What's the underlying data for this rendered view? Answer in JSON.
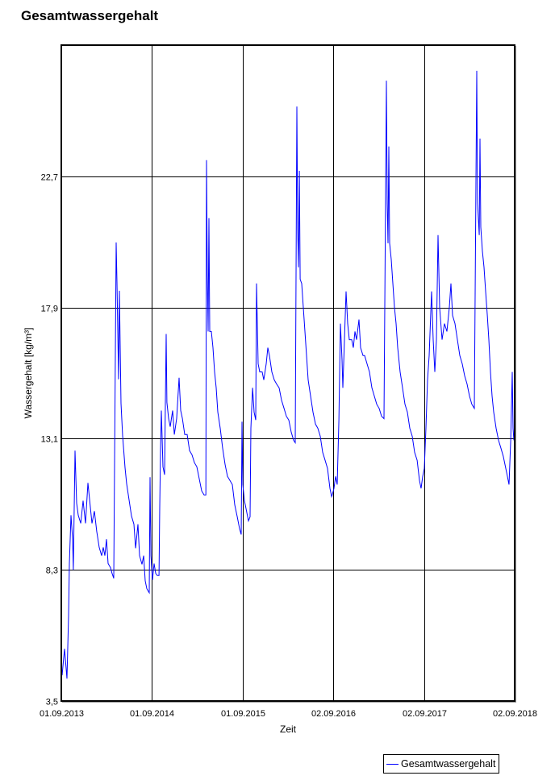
{
  "title": "Gesamtwassergehalt",
  "chart_data": {
    "type": "line",
    "title": "Gesamtwassergehalt",
    "xlabel": "Zeit",
    "ylabel": "Wassergehalt [kg/m³]",
    "ylim": [
      3.5,
      27.5
    ],
    "yticks": [
      3.5,
      8.3,
      13.1,
      17.9,
      22.7
    ],
    "ytick_labels": [
      "3,5",
      "8,3",
      "13,1",
      "17,9",
      "22,7"
    ],
    "xticks": [
      "01.09.2013",
      "01.09.2014",
      "01.09.2015",
      "02.09.2016",
      "02.09.2017",
      "02.09.2018"
    ],
    "x_unit": "years since 01.09.2013",
    "xlim": [
      0,
      5
    ],
    "grid": true,
    "legend_position": "bottom-right",
    "series": [
      {
        "name": "Gesamtwassergehalt",
        "color": "#0000ff",
        "points": [
          [
            0.009,
            4.44
          ],
          [
            0.036,
            5.41
          ],
          [
            0.062,
            4.32
          ],
          [
            0.08,
            6.62
          ],
          [
            0.089,
            8.53
          ],
          [
            0.107,
            10.3
          ],
          [
            0.125,
            9.42
          ],
          [
            0.133,
            8.3
          ],
          [
            0.151,
            12.66
          ],
          [
            0.169,
            10.74
          ],
          [
            0.187,
            10.3
          ],
          [
            0.214,
            10.0
          ],
          [
            0.24,
            10.83
          ],
          [
            0.267,
            10.0
          ],
          [
            0.294,
            11.48
          ],
          [
            0.311,
            10.89
          ],
          [
            0.338,
            10.0
          ],
          [
            0.365,
            10.45
          ],
          [
            0.391,
            9.71
          ],
          [
            0.418,
            9.12
          ],
          [
            0.445,
            8.82
          ],
          [
            0.463,
            9.12
          ],
          [
            0.48,
            8.82
          ],
          [
            0.498,
            9.42
          ],
          [
            0.516,
            8.53
          ],
          [
            0.543,
            8.38
          ],
          [
            0.56,
            8.17
          ],
          [
            0.578,
            7.99
          ],
          [
            0.605,
            20.28
          ],
          [
            0.614,
            18.81
          ],
          [
            0.632,
            15.27
          ],
          [
            0.641,
            18.51
          ],
          [
            0.658,
            14.39
          ],
          [
            0.676,
            13.21
          ],
          [
            0.703,
            12.04
          ],
          [
            0.721,
            11.45
          ],
          [
            0.747,
            10.86
          ],
          [
            0.774,
            10.27
          ],
          [
            0.801,
            9.97
          ],
          [
            0.819,
            9.09
          ],
          [
            0.845,
            9.97
          ],
          [
            0.863,
            8.82
          ],
          [
            0.89,
            8.5
          ],
          [
            0.908,
            8.82
          ],
          [
            0.925,
            7.9
          ],
          [
            0.943,
            7.61
          ],
          [
            0.97,
            7.46
          ],
          [
            0.979,
            11.69
          ],
          [
            0.988,
            8.82
          ],
          [
            1.005,
            7.93
          ],
          [
            1.023,
            8.53
          ],
          [
            1.041,
            8.17
          ],
          [
            1.059,
            8.09
          ],
          [
            1.077,
            8.09
          ],
          [
            1.085,
            10.59
          ],
          [
            1.094,
            12.66
          ],
          [
            1.103,
            14.13
          ],
          [
            1.121,
            12.07
          ],
          [
            1.139,
            11.78
          ],
          [
            1.157,
            16.93
          ],
          [
            1.165,
            14.43
          ],
          [
            1.183,
            13.84
          ],
          [
            1.201,
            13.54
          ],
          [
            1.228,
            14.13
          ],
          [
            1.246,
            13.25
          ],
          [
            1.272,
            13.84
          ],
          [
            1.299,
            15.33
          ],
          [
            1.317,
            14.13
          ],
          [
            1.335,
            13.84
          ],
          [
            1.361,
            13.25
          ],
          [
            1.388,
            13.25
          ],
          [
            1.415,
            12.66
          ],
          [
            1.441,
            12.51
          ],
          [
            1.468,
            12.22
          ],
          [
            1.495,
            12.07
          ],
          [
            1.521,
            11.63
          ],
          [
            1.548,
            11.19
          ],
          [
            1.575,
            11.04
          ],
          [
            1.594,
            11.04
          ],
          [
            1.601,
            23.29
          ],
          [
            1.61,
            19.08
          ],
          [
            1.619,
            17.02
          ],
          [
            1.628,
            21.17
          ],
          [
            1.637,
            17.02
          ],
          [
            1.655,
            17.02
          ],
          [
            1.673,
            16.43
          ],
          [
            1.69,
            15.54
          ],
          [
            1.708,
            14.96
          ],
          [
            1.726,
            14.07
          ],
          [
            1.753,
            13.48
          ],
          [
            1.779,
            12.75
          ],
          [
            1.806,
            12.16
          ],
          [
            1.833,
            11.72
          ],
          [
            1.859,
            11.57
          ],
          [
            1.886,
            11.42
          ],
          [
            1.913,
            10.68
          ],
          [
            1.94,
            10.24
          ],
          [
            1.966,
            9.8
          ],
          [
            1.984,
            9.59
          ],
          [
            1.993,
            13.72
          ],
          [
            2.002,
            11.42
          ],
          [
            2.02,
            10.83
          ],
          [
            2.037,
            10.54
          ],
          [
            2.055,
            10.24
          ],
          [
            2.064,
            10.09
          ],
          [
            2.082,
            10.24
          ],
          [
            2.091,
            13.48
          ],
          [
            2.109,
            14.96
          ],
          [
            2.126,
            14.07
          ],
          [
            2.144,
            13.78
          ],
          [
            2.153,
            18.78
          ],
          [
            2.171,
            15.84
          ],
          [
            2.189,
            15.54
          ],
          [
            2.215,
            15.54
          ],
          [
            2.233,
            15.25
          ],
          [
            2.26,
            15.84
          ],
          [
            2.278,
            16.43
          ],
          [
            2.295,
            16.14
          ],
          [
            2.322,
            15.54
          ],
          [
            2.349,
            15.25
          ],
          [
            2.375,
            15.1
          ],
          [
            2.402,
            14.96
          ],
          [
            2.429,
            14.51
          ],
          [
            2.456,
            14.21
          ],
          [
            2.482,
            13.92
          ],
          [
            2.509,
            13.78
          ],
          [
            2.536,
            13.34
          ],
          [
            2.562,
            13.04
          ],
          [
            2.58,
            12.95
          ],
          [
            2.598,
            25.25
          ],
          [
            2.607,
            20.84
          ],
          [
            2.616,
            19.37
          ],
          [
            2.625,
            22.9
          ],
          [
            2.634,
            18.93
          ],
          [
            2.651,
            18.78
          ],
          [
            2.669,
            17.9
          ],
          [
            2.687,
            17.02
          ],
          [
            2.705,
            16.14
          ],
          [
            2.722,
            15.25
          ],
          [
            2.749,
            14.66
          ],
          [
            2.776,
            14.07
          ],
          [
            2.803,
            13.63
          ],
          [
            2.829,
            13.48
          ],
          [
            2.856,
            13.19
          ],
          [
            2.883,
            12.6
          ],
          [
            2.909,
            12.31
          ],
          [
            2.936,
            12.01
          ],
          [
            2.963,
            11.28
          ],
          [
            2.981,
            10.98
          ],
          [
            2.99,
            11.07
          ],
          [
            3.007,
            11.28
          ],
          [
            3.025,
            11.72
          ],
          [
            3.043,
            11.42
          ],
          [
            3.061,
            13.78
          ],
          [
            3.078,
            17.31
          ],
          [
            3.096,
            15.98
          ],
          [
            3.105,
            14.96
          ],
          [
            3.123,
            16.72
          ],
          [
            3.141,
            18.49
          ],
          [
            3.158,
            17.31
          ],
          [
            3.176,
            16.72
          ],
          [
            3.203,
            16.72
          ],
          [
            3.221,
            16.43
          ],
          [
            3.238,
            17.02
          ],
          [
            3.256,
            16.72
          ],
          [
            3.283,
            17.46
          ],
          [
            3.301,
            16.43
          ],
          [
            3.327,
            16.14
          ],
          [
            3.345,
            16.14
          ],
          [
            3.372,
            15.84
          ],
          [
            3.399,
            15.54
          ],
          [
            3.425,
            14.96
          ],
          [
            3.452,
            14.66
          ],
          [
            3.479,
            14.36
          ],
          [
            3.505,
            14.21
          ],
          [
            3.532,
            13.92
          ],
          [
            3.559,
            13.83
          ],
          [
            3.585,
            26.2
          ],
          [
            3.594,
            21.72
          ],
          [
            3.603,
            20.25
          ],
          [
            3.612,
            23.79
          ],
          [
            3.621,
            20.25
          ],
          [
            3.639,
            19.66
          ],
          [
            3.657,
            18.78
          ],
          [
            3.674,
            17.9
          ],
          [
            3.692,
            17.31
          ],
          [
            3.71,
            16.43
          ],
          [
            3.737,
            15.54
          ],
          [
            3.763,
            14.96
          ],
          [
            3.79,
            14.36
          ],
          [
            3.817,
            14.07
          ],
          [
            3.843,
            13.48
          ],
          [
            3.87,
            13.19
          ],
          [
            3.897,
            12.6
          ],
          [
            3.924,
            12.31
          ],
          [
            3.95,
            11.57
          ],
          [
            3.968,
            11.28
          ],
          [
            3.986,
            11.72
          ],
          [
            4.004,
            12.01
          ],
          [
            4.021,
            13.48
          ],
          [
            4.039,
            15.25
          ],
          [
            4.057,
            16.14
          ],
          [
            4.084,
            18.49
          ],
          [
            4.101,
            16.72
          ],
          [
            4.119,
            15.54
          ],
          [
            4.137,
            16.72
          ],
          [
            4.155,
            20.55
          ],
          [
            4.173,
            17.9
          ],
          [
            4.199,
            16.72
          ],
          [
            4.226,
            17.31
          ],
          [
            4.253,
            17.02
          ],
          [
            4.279,
            17.9
          ],
          [
            4.297,
            18.78
          ],
          [
            4.315,
            17.61
          ],
          [
            4.342,
            17.31
          ],
          [
            4.368,
            16.72
          ],
          [
            4.395,
            16.14
          ],
          [
            4.422,
            15.84
          ],
          [
            4.448,
            15.4
          ],
          [
            4.475,
            15.1
          ],
          [
            4.502,
            14.66
          ],
          [
            4.528,
            14.36
          ],
          [
            4.555,
            14.21
          ],
          [
            4.582,
            26.56
          ],
          [
            4.591,
            21.72
          ],
          [
            4.609,
            20.55
          ],
          [
            4.617,
            24.08
          ],
          [
            4.626,
            20.84
          ],
          [
            4.644,
            19.96
          ],
          [
            4.662,
            19.37
          ],
          [
            4.68,
            18.49
          ],
          [
            4.698,
            17.61
          ],
          [
            4.715,
            16.72
          ],
          [
            4.733,
            15.54
          ],
          [
            4.751,
            14.66
          ],
          [
            4.769,
            14.07
          ],
          [
            4.795,
            13.48
          ],
          [
            4.822,
            13.04
          ],
          [
            4.849,
            12.75
          ],
          [
            4.875,
            12.45
          ],
          [
            4.902,
            12.01
          ],
          [
            4.92,
            11.72
          ],
          [
            4.938,
            11.42
          ],
          [
            4.956,
            13.04
          ],
          [
            4.973,
            15.54
          ],
          [
            4.982,
            13.48
          ],
          [
            4.991,
            13.04
          ],
          [
            5.0,
            13.19
          ]
        ]
      }
    ]
  },
  "legend": {
    "items": [
      {
        "label": "Gesamtwassergehalt",
        "color": "#0000ff"
      }
    ]
  }
}
